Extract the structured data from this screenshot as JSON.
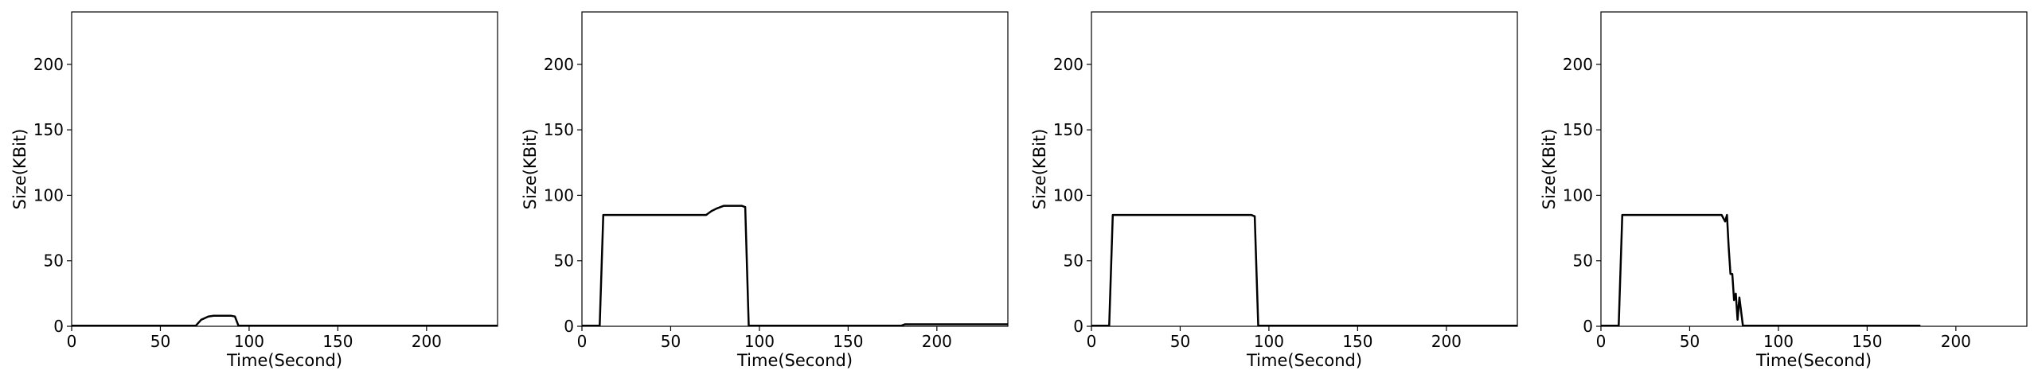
{
  "chart_data": [
    {
      "type": "line",
      "title": "",
      "xlabel": "Time(Second)",
      "ylabel": "Size(KBit)",
      "xlim": [
        0,
        240
      ],
      "ylim": [
        0,
        240
      ],
      "xticks": [
        0,
        50,
        100,
        150,
        200
      ],
      "yticks": [
        0,
        50,
        100,
        150,
        200
      ],
      "grid": false,
      "series": [
        {
          "x": [
            0,
            70,
            73,
            77,
            80,
            85,
            90,
            92,
            94,
            240
          ],
          "y": [
            0.5,
            0.5,
            5,
            7.5,
            8,
            8,
            8,
            7.5,
            0.5,
            0.5
          ]
        }
      ]
    },
    {
      "type": "line",
      "title": "",
      "xlabel": "Time(Second)",
      "ylabel": "Size(KBit)",
      "xlim": [
        0,
        240
      ],
      "ylim": [
        0,
        240
      ],
      "xticks": [
        0,
        50,
        100,
        150,
        200
      ],
      "yticks": [
        0,
        50,
        100,
        150,
        200
      ],
      "grid": false,
      "series": [
        {
          "x": [
            0,
            10,
            12,
            20,
            30,
            40,
            50,
            60,
            70,
            73,
            76,
            80,
            85,
            90,
            92,
            94,
            180,
            182,
            240
          ],
          "y": [
            0.5,
            0.5,
            85,
            85,
            85,
            85,
            85,
            85,
            85,
            88,
            90,
            92,
            92,
            92,
            91,
            0.5,
            0.5,
            1.5,
            1.5
          ]
        }
      ]
    },
    {
      "type": "line",
      "title": "",
      "xlabel": "Time(Second)",
      "ylabel": "Size(KBit)",
      "xlim": [
        0,
        240
      ],
      "ylim": [
        0,
        240
      ],
      "xticks": [
        0,
        50,
        100,
        150,
        200
      ],
      "yticks": [
        0,
        50,
        100,
        150,
        200
      ],
      "grid": false,
      "series": [
        {
          "x": [
            0,
            10,
            12,
            20,
            30,
            40,
            50,
            60,
            70,
            80,
            90,
            92,
            94,
            240
          ],
          "y": [
            0.5,
            0.5,
            85,
            85,
            85,
            85,
            85,
            85,
            85,
            85,
            85,
            84,
            0.5,
            0.5
          ]
        }
      ]
    },
    {
      "type": "line",
      "title": "",
      "xlabel": "Time(Second)",
      "ylabel": "Size(KBit)",
      "xlim": [
        0,
        240
      ],
      "ylim": [
        0,
        240
      ],
      "xticks": [
        0,
        50,
        100,
        150,
        200
      ],
      "yticks": [
        0,
        50,
        100,
        150,
        200
      ],
      "grid": false,
      "series": [
        {
          "x": [
            0,
            10,
            12,
            20,
            30,
            40,
            50,
            60,
            68,
            70,
            71,
            72,
            73,
            74,
            75,
            76,
            77,
            78,
            80,
            180
          ],
          "y": [
            0.5,
            0.5,
            85,
            85,
            85,
            85,
            85,
            85,
            85,
            80,
            85,
            60,
            40,
            40,
            20,
            25,
            5,
            22,
            0.5,
            0.5
          ]
        }
      ]
    }
  ]
}
